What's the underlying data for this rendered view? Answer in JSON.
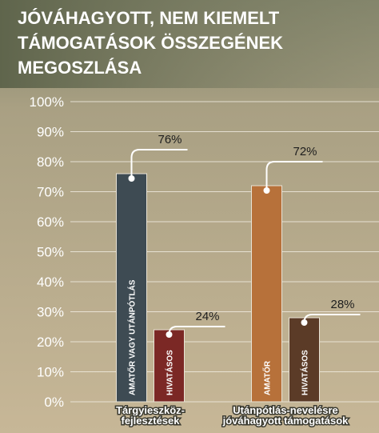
{
  "chart_data": {
    "type": "grouped-bar",
    "title": [
      "JÓVÁHAGYOTT, NEM KIEMELT",
      "TÁMOGATÁSOK ÖSSZEGÉNEK",
      "MEGOSZLÁSA"
    ],
    "ylim": [
      0,
      100
    ],
    "yticks": [
      {
        "value": 0,
        "label": "0%"
      },
      {
        "value": 10,
        "label": "10%"
      },
      {
        "value": 20,
        "label": "20%"
      },
      {
        "value": 30,
        "label": "30%"
      },
      {
        "value": 40,
        "label": "40%"
      },
      {
        "value": 50,
        "label": "50%"
      },
      {
        "value": 60,
        "label": "60%"
      },
      {
        "value": 70,
        "label": "70%"
      },
      {
        "value": 80,
        "label": "80%"
      },
      {
        "value": 90,
        "label": "90%"
      },
      {
        "value": 100,
        "label": "100%"
      }
    ],
    "grid": true,
    "groups": [
      {
        "category": [
          "Tárgyieszköz-",
          "fejlesztések"
        ],
        "bars": [
          {
            "name": "AMATŐR VAGY UTÁNPÓTLÁS",
            "color": "#3e4b53",
            "value": 76,
            "value_label": "76%"
          },
          {
            "name": "HIVATÁSOS",
            "color": "#7b2825",
            "value": 24,
            "value_label": "24%"
          }
        ]
      },
      {
        "category": [
          "Utánpótlás-nevelésre",
          "jóváhagyott támogatások"
        ],
        "bars": [
          {
            "name": "AMATŐR",
            "color": "#b7713a",
            "value": 72,
            "value_label": "72%"
          },
          {
            "name": "HIVATÁSOS",
            "color": "#5b3b27",
            "value": 28,
            "value_label": "28%"
          }
        ]
      }
    ]
  }
}
